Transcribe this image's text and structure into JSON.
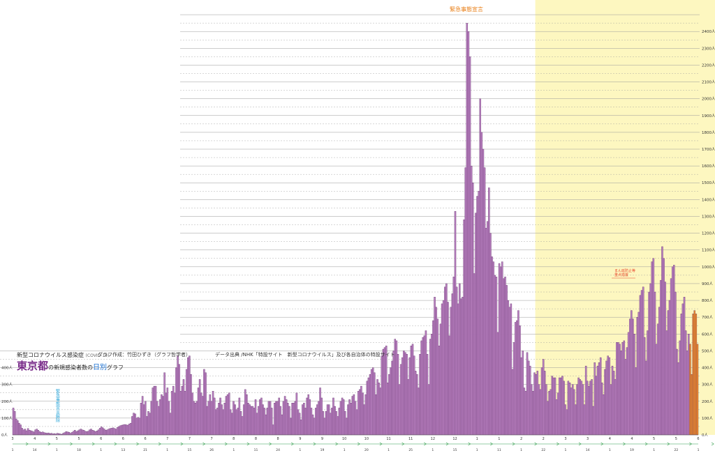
{
  "title": {
    "line1": "新型コロナウイルス感染症",
    "line1_small": "(COVID-19)",
    "author": "グラフ作成：竹田ひずき（グラフ哲学者）",
    "pref": "東京都",
    "mid": "の新規感染者数の",
    "daily": "日別",
    "graph": "グラフ",
    "source": "データ出典 /NHK「特設サイト　新型コロナウイルス」及び各自治体の特設サイト"
  },
  "annotations": {
    "emergency_label": "緊急事態宣言",
    "lift_label": "緊急事態宣言解除",
    "priority_label_1": "まん延防止等",
    "priority_label_2": "重点措置"
  },
  "colors": {
    "bar": "#b980c0",
    "bar_stroke": "#5a2a63",
    "bar_recent": "#f08c2a",
    "emergency_band": "#fdf7c0",
    "grid": "#9a9a9a",
    "date_arrow": "#2e9c4a",
    "emergency_text": "#e87e16",
    "lift_text": "#2aa5d8",
    "priority_text": "#e8452a"
  },
  "chart_data": {
    "type": "bar",
    "ylim": [
      0,
      2500
    ],
    "y_unit": "人",
    "y_ticks_left": [
      "0人",
      "100人",
      "200人",
      "300人",
      "400人"
    ],
    "y_ticks_right": [
      "0人",
      "100人",
      "200人",
      "300人",
      "400人",
      "500人",
      "600人",
      "700人",
      "800人",
      "900人",
      "1000人",
      "1100人",
      "1200人",
      "1300人",
      "1400人",
      "1500人",
      "1600人",
      "1700人",
      "1800人",
      "1900人",
      "2000人",
      "2100人",
      "2200人",
      "2300人",
      "2400人"
    ],
    "grid": true,
    "series": [
      {
        "values": [
          160,
          140,
          95,
          85,
          70,
          60,
          40,
          30,
          35,
          25,
          38,
          28,
          25,
          22,
          18,
          30,
          35,
          28,
          20,
          15,
          18,
          14,
          12,
          10,
          12,
          8,
          10,
          6,
          8,
          5,
          10,
          8,
          6,
          4,
          10,
          14,
          20,
          18,
          16,
          10,
          15,
          22,
          28,
          20,
          25,
          30,
          35,
          30,
          28,
          22,
          20,
          22,
          30,
          35,
          28,
          25,
          20,
          24,
          30,
          40,
          48,
          42,
          35,
          28,
          30,
          35,
          38,
          40,
          42,
          38,
          35,
          45,
          50,
          55,
          58,
          60,
          62,
          60,
          58,
          65,
          70,
          110,
          130,
          125,
          100,
          105,
          100,
          190,
          230,
          180,
          200,
          110,
          140,
          130,
          200,
          280,
          290,
          290,
          200,
          170,
          210,
          240,
          230,
          370,
          250,
          280,
          200,
          130,
          260,
          290,
          250,
          400,
          470,
          420,
          260,
          290,
          330,
          260,
          390,
          460,
          470,
          360,
          250,
          200,
          190,
          200,
          280,
          330,
          250,
          230,
          390,
          370,
          170,
          200,
          240,
          200,
          260,
          220,
          150,
          160,
          190,
          220,
          180,
          150,
          190,
          230,
          240,
          250,
          150,
          130,
          200,
          180,
          150,
          160,
          220,
          140,
          110,
          180,
          270,
          240,
          190,
          180,
          170,
          170,
          160,
          210,
          130,
          170,
          210,
          220,
          180,
          160,
          120,
          160,
          200,
          200,
          160,
          60,
          190,
          200,
          200,
          220,
          170,
          120,
          200,
          230,
          210,
          190,
          170,
          100,
          190,
          190,
          200,
          250,
          150,
          130,
          90,
          180,
          190,
          160,
          220,
          240,
          210,
          160,
          120,
          100,
          160,
          180,
          200,
          280,
          220,
          140,
          100,
          140,
          180,
          180,
          130,
          160,
          220,
          170,
          140,
          110,
          160,
          200,
          220,
          210,
          140,
          100,
          180,
          210,
          190,
          230,
          240,
          200,
          150,
          260,
          270,
          290,
          250,
          180,
          240,
          320,
          340,
          360,
          390,
          400,
          370,
          240,
          330,
          310,
          280,
          470,
          510,
          520,
          530,
          310,
          360,
          400,
          440,
          500,
          570,
          560,
          480,
          300,
          420,
          460,
          500,
          490,
          480,
          330,
          460,
          530,
          540,
          470,
          380,
          360,
          280,
          480,
          560,
          580,
          590,
          620,
          480,
          300,
          570,
          600,
          680,
          820,
          760,
          690,
          530,
          660,
          780,
          800,
          880,
          900,
          790,
          590,
          760,
          840,
          940,
          1330,
          880,
          780,
          900,
          810,
          820,
          1280,
          1590,
          2450,
          2400,
          2250,
          1600,
          1500,
          960,
          1320,
          1420,
          1450,
          2000,
          1800,
          1700,
          1590,
          1230,
          1270,
          1470,
          1200,
          1060,
          1030,
          950,
          940,
          610,
          1020,
          1000,
          1030,
          930,
          940,
          890,
          800,
          760,
          780,
          390,
          550,
          670,
          680,
          740,
          650,
          460,
          500,
          280,
          260,
          490,
          440,
          410,
          300,
          260,
          370,
          360,
          380,
          300,
          270,
          400,
          450,
          380,
          300,
          200,
          260,
          270,
          350,
          340,
          340,
          210,
          250,
          340,
          340,
          350,
          320,
          180,
          150,
          320,
          310,
          280,
          300,
          270,
          180,
          300,
          340,
          330,
          320,
          300,
          180,
          410,
          320,
          290,
          320,
          330,
          170,
          430,
          350,
          410,
          430,
          460,
          310,
          240,
          390,
          440,
          470,
          460,
          300,
          410,
          380,
          330,
          550,
          550,
          540,
          500,
          550,
          560,
          450,
          520,
          610,
          690,
          740,
          690,
          600,
          400,
          700,
          730,
          830,
          860,
          880,
          580,
          440,
          620,
          850,
          900,
          1030,
          1050,
          850,
          540,
          660,
          760,
          920,
          1120,
          1050,
          910,
          620,
          740,
          800,
          930,
          1000,
          1010,
          850,
          510,
          430,
          560,
          720,
          780,
          820,
          620,
          500,
          600,
          540,
          360,
          720,
          740,
          720,
          540
        ]
      }
    ],
    "recent_count": 6,
    "emergency_periods": [
      {
        "start_index": 356,
        "end_index": 495
      },
      {
        "start_index": 545,
        "end_index": 593
      }
    ],
    "x_month_labels": [
      "3",
      "4",
      "5",
      "5",
      "6",
      "6",
      "6",
      "7",
      "7",
      "7",
      "8",
      "8",
      "8",
      "9",
      "9",
      "10",
      "10",
      "11",
      "11",
      "12",
      "12",
      "1",
      "1",
      "2",
      "2",
      "3",
      "3",
      "4",
      "4",
      "5",
      "5",
      "6"
    ],
    "x_day_labels": [
      "1",
      "14",
      "1",
      "18",
      "1",
      "13",
      "21",
      "1",
      "15",
      "26",
      "1",
      "11",
      "24",
      "1",
      "19",
      "1",
      "20",
      "1",
      "25",
      "1",
      "15",
      "1",
      "11",
      "1",
      "22",
      "1",
      "14",
      "1",
      "19",
      "1",
      "22",
      "1"
    ]
  }
}
